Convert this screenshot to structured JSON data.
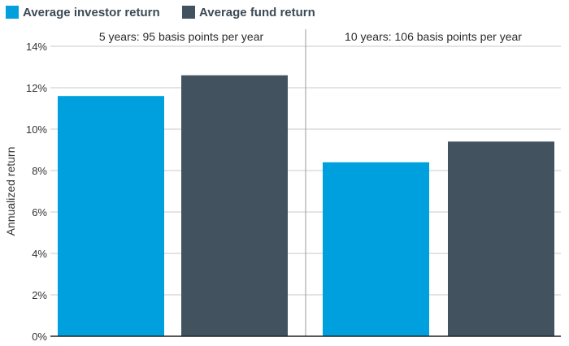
{
  "chart_data": {
    "type": "bar",
    "ylabel": "Annualized return",
    "ylim": [
      0,
      14
    ],
    "yticks": [
      0,
      2,
      4,
      6,
      8,
      10,
      12,
      14
    ],
    "ytick_labels": [
      "0%",
      "2%",
      "4%",
      "6%",
      "8%",
      "10%",
      "12%",
      "14%"
    ],
    "grid": true,
    "legend_position": "top-left",
    "categories": [
      "5 years: 95 basis points per year",
      "10 years: 106 basis points per year"
    ],
    "series": [
      {
        "name": "Average investor return",
        "color": "#00a0df",
        "values": [
          11.6,
          8.4
        ]
      },
      {
        "name": "Average fund return",
        "color": "#43525f",
        "values": [
          12.6,
          9.4
        ]
      }
    ]
  }
}
